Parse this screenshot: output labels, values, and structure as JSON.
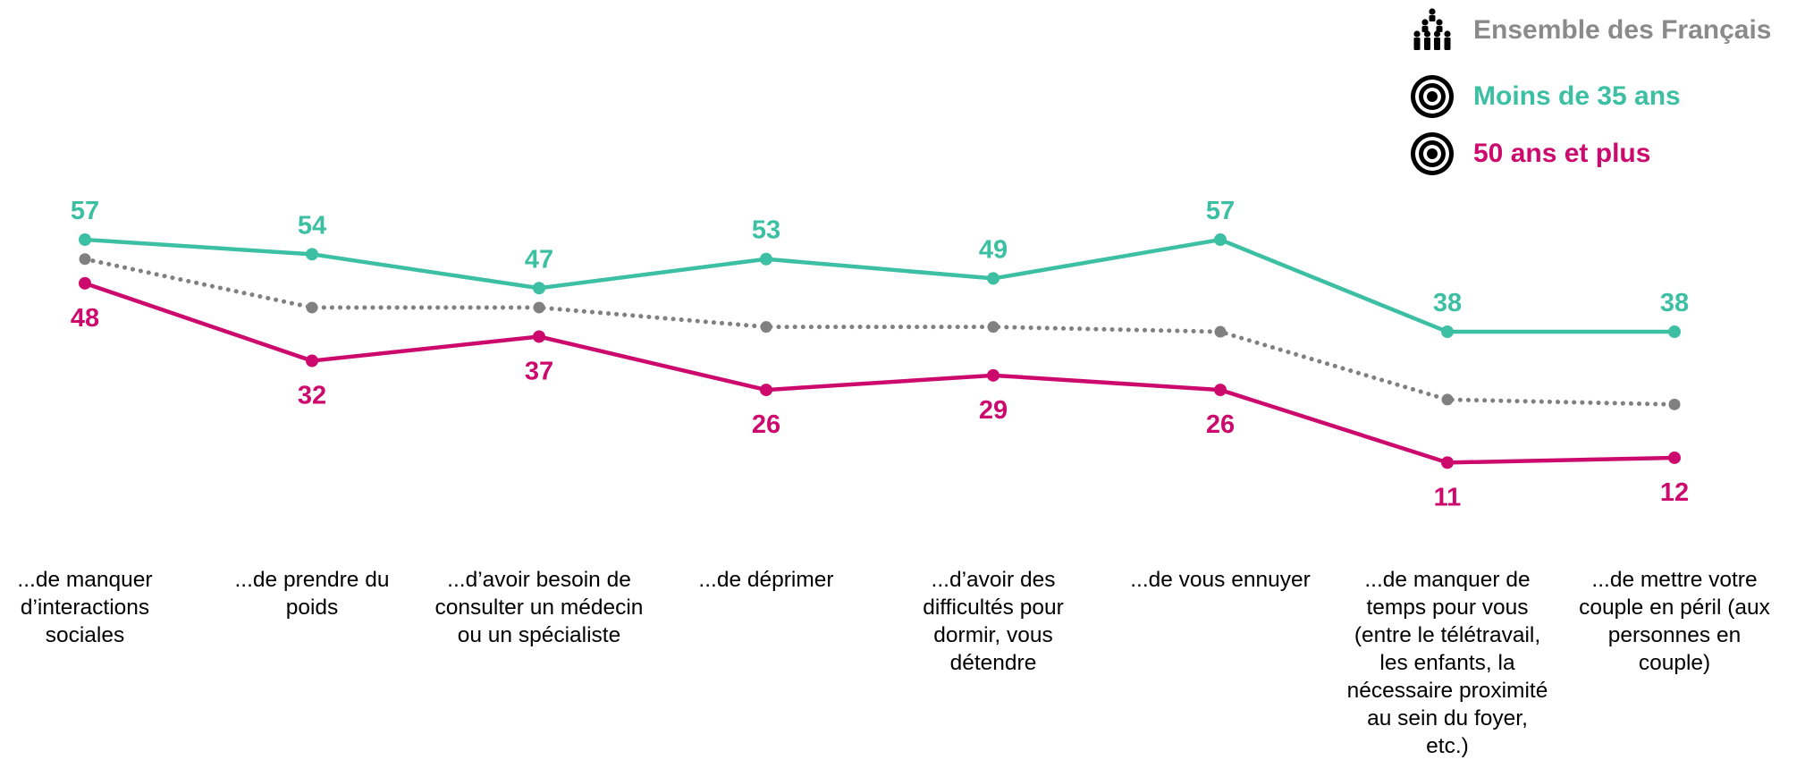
{
  "chart_data": {
    "type": "line",
    "categories": [
      "...de manquer d’interactions sociales",
      "...de prendre du poids",
      "...d’avoir besoin de consulter un médecin ou un spécialiste",
      "...de déprimer",
      "...d’avoir des difficultés pour dormir, vous détendre",
      "...de vous ennuyer",
      "...de manquer de temps pour vous (entre le télétravail, les enfants, la nécessaire proximité au sein du foyer, etc.)",
      "...de mettre votre couple en péril (aux personnes en couple)"
    ],
    "category_lines": [
      [
        "...de manquer",
        "d’interactions",
        "sociales"
      ],
      [
        "...de prendre du",
        "poids"
      ],
      [
        "...d’avoir besoin de",
        "consulter un médecin",
        "ou un spécialiste"
      ],
      [
        "...de déprimer"
      ],
      [
        "...d’avoir des",
        "difficultés pour",
        "dormir, vous",
        "détendre"
      ],
      [
        "...de vous ennuyer"
      ],
      [
        "...de manquer de",
        "temps pour vous",
        "(entre le télétravail,",
        "les enfants, la",
        "nécessaire proximité",
        "au sein du foyer,",
        "etc.)"
      ],
      [
        "...de mettre votre",
        "couple en péril (aux",
        "personnes en",
        "couple)"
      ]
    ],
    "series": [
      {
        "name": "Ensemble des Français",
        "color": "#808080",
        "style": "dotted",
        "show_labels": false,
        "values": [
          53,
          43,
          43,
          39,
          39,
          38,
          24,
          23
        ]
      },
      {
        "name": "Moins de 35 ans",
        "color": "#3cbfa2",
        "style": "solid",
        "show_labels": true,
        "label_position": "above",
        "values": [
          57,
          54,
          47,
          53,
          49,
          57,
          38,
          38
        ]
      },
      {
        "name": "50 ans et plus",
        "color": "#cc0a6e",
        "style": "solid",
        "show_labels": true,
        "label_position": "below",
        "values": [
          48,
          32,
          37,
          26,
          29,
          26,
          11,
          12
        ]
      }
    ],
    "legend_position": "top-right",
    "grid": false,
    "ylim": [
      0,
      70
    ],
    "legend_icons": [
      "people-group-icon",
      "target-icon",
      "target-icon"
    ]
  }
}
